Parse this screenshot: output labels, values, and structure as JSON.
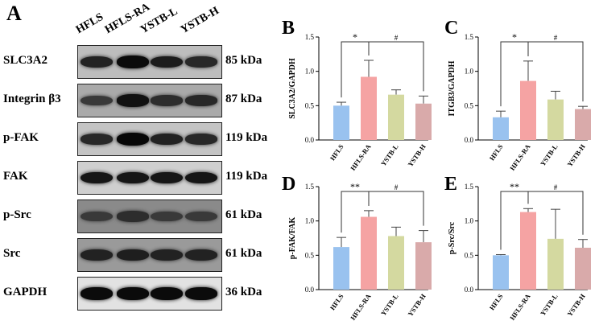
{
  "blot_panel": {
    "letter": "A",
    "lanes": [
      "HFLS",
      "HFLS-RA",
      "YSTB-L",
      "YSTB-H"
    ],
    "rows": [
      {
        "label": "SLC3A2",
        "kda": "85 kDa",
        "bg": "#bdbdbd",
        "intensity": [
          0.75,
          0.95,
          0.8,
          0.7
        ]
      },
      {
        "label": "Integrin β3",
        "kda": "87 kDa",
        "bg": "#aaaaaa",
        "intensity": [
          0.55,
          0.9,
          0.65,
          0.7
        ]
      },
      {
        "label": "p-FAK",
        "kda": "119 kDa",
        "bg": "#c4c4c4",
        "intensity": [
          0.7,
          0.98,
          0.75,
          0.7
        ]
      },
      {
        "label": "FAK",
        "kda": "119 kDa",
        "bg": "#cfcfcf",
        "intensity": [
          0.85,
          0.85,
          0.85,
          0.85
        ]
      },
      {
        "label": "p-Src",
        "kda": "61 kDa",
        "bg": "#8a8a8a",
        "intensity": [
          0.55,
          0.65,
          0.55,
          0.55
        ]
      },
      {
        "label": "Src",
        "kda": "61 kDa",
        "bg": "#9a9a9a",
        "intensity": [
          0.75,
          0.78,
          0.75,
          0.75
        ]
      },
      {
        "label": "GAPDH",
        "kda": "36 kDa",
        "bg": "#e2e2e2",
        "intensity": [
          0.95,
          0.95,
          0.95,
          0.95
        ]
      }
    ]
  },
  "colors": {
    "HFLS": "#99c2ef",
    "HFLS-RA": "#f5a3a3",
    "YSTB-L": "#d4d9a0",
    "YSTB-H": "#d9aaaa"
  },
  "chart_data": [
    {
      "panel": "B",
      "type": "bar",
      "categories": [
        "HFLS",
        "HFLS-RA",
        "YSTB-L",
        "YSTB-H"
      ],
      "values": [
        0.5,
        0.92,
        0.66,
        0.53
      ],
      "errors": [
        0.05,
        0.24,
        0.07,
        0.11
      ],
      "ylabel": "SLC3A2/GAPDH",
      "ylim": [
        0.0,
        1.5
      ],
      "yticks": [
        "0.0",
        "0.5",
        "1.0",
        "1.5"
      ],
      "sig": [
        {
          "label": "*",
          "from": 0,
          "to": 1
        },
        {
          "label": "#",
          "from": 1,
          "to": 3
        }
      ]
    },
    {
      "panel": "C",
      "type": "bar",
      "categories": [
        "HFLS",
        "HFLS-RA",
        "YSTB-L",
        "YSTB-H"
      ],
      "values": [
        0.33,
        0.86,
        0.59,
        0.45
      ],
      "errors": [
        0.09,
        0.29,
        0.12,
        0.04
      ],
      "ylabel": "ITGB3/GAPDH",
      "ylim": [
        0.0,
        1.5
      ],
      "yticks": [
        "0.0",
        "0.5",
        "1.0",
        "1.5"
      ],
      "sig": [
        {
          "label": "*",
          "from": 0,
          "to": 1
        },
        {
          "label": "#",
          "from": 1,
          "to": 3
        }
      ]
    },
    {
      "panel": "D",
      "type": "bar",
      "categories": [
        "HFLS",
        "HFLS-RA",
        "YSTB-L",
        "YSTB-H"
      ],
      "values": [
        0.62,
        1.06,
        0.78,
        0.69
      ],
      "errors": [
        0.14,
        0.09,
        0.13,
        0.17
      ],
      "ylabel": "p-FAK/FAK",
      "ylim": [
        0.0,
        1.5
      ],
      "yticks": [
        "0.0",
        "0.5",
        "1.0",
        "1.5"
      ],
      "sig": [
        {
          "label": "**",
          "from": 0,
          "to": 1
        },
        {
          "label": "#",
          "from": 1,
          "to": 3
        }
      ]
    },
    {
      "panel": "E",
      "type": "bar",
      "categories": [
        "HFLS",
        "HFLS-RA",
        "YSTB-L",
        "YSTB-H"
      ],
      "values": [
        0.5,
        1.13,
        0.74,
        0.61
      ],
      "errors": [
        0.01,
        0.05,
        0.43,
        0.12
      ],
      "ylabel": "p-Src/Src",
      "ylim": [
        0.0,
        1.5
      ],
      "yticks": [
        "0.0",
        "0.5",
        "1.0",
        "1.5"
      ],
      "sig": [
        {
          "label": "**",
          "from": 0,
          "to": 1
        },
        {
          "label": "#",
          "from": 1,
          "to": 3
        }
      ]
    }
  ]
}
